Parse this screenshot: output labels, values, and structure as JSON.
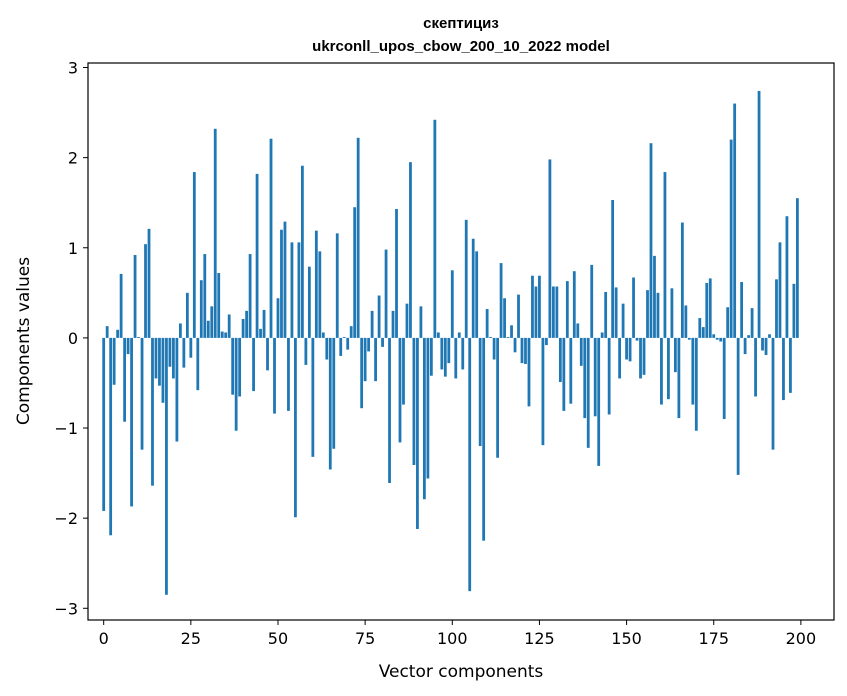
{
  "chart_data": {
    "type": "bar",
    "title": "скептициз",
    "subtitle": "ukrconll_upos_cbow_200_10_2022 model",
    "xlabel": "Vector components",
    "ylabel": "Components values",
    "xlim": [
      -4.5,
      209.5
    ],
    "ylim": [
      -3.13,
      3.05
    ],
    "xticks": [
      0,
      25,
      50,
      75,
      100,
      125,
      150,
      175,
      200
    ],
    "yticks": [
      -3,
      -2,
      -1,
      0,
      1,
      2,
      3
    ],
    "xtick_labels": [
      "0",
      "25",
      "50",
      "75",
      "100",
      "125",
      "150",
      "175",
      "200"
    ],
    "ytick_labels": [
      "−3",
      "−2",
      "−1",
      "0",
      "1",
      "2",
      "3"
    ],
    "grid": false,
    "bar_color": "#1f77b4",
    "x": [
      0,
      1,
      2,
      3,
      4,
      5,
      6,
      7,
      8,
      9,
      10,
      11,
      12,
      13,
      14,
      15,
      16,
      17,
      18,
      19,
      20,
      21,
      22,
      23,
      24,
      25,
      26,
      27,
      28,
      29,
      30,
      31,
      32,
      33,
      34,
      35,
      36,
      37,
      38,
      39,
      40,
      41,
      42,
      43,
      44,
      45,
      46,
      47,
      48,
      49,
      50,
      51,
      52,
      53,
      54,
      55,
      56,
      57,
      58,
      59,
      60,
      61,
      62,
      63,
      64,
      65,
      66,
      67,
      68,
      69,
      70,
      71,
      72,
      73,
      74,
      75,
      76,
      77,
      78,
      79,
      80,
      81,
      82,
      83,
      84,
      85,
      86,
      87,
      88,
      89,
      90,
      91,
      92,
      93,
      94,
      95,
      96,
      97,
      98,
      99,
      100,
      101,
      102,
      103,
      104,
      105,
      106,
      107,
      108,
      109,
      110,
      111,
      112,
      113,
      114,
      115,
      116,
      117,
      118,
      119,
      120,
      121,
      122,
      123,
      124,
      125,
      126,
      127,
      128,
      129,
      130,
      131,
      132,
      133,
      134,
      135,
      136,
      137,
      138,
      139,
      140,
      141,
      142,
      143,
      144,
      145,
      146,
      147,
      148,
      149,
      150,
      151,
      152,
      153,
      154,
      155,
      156,
      157,
      158,
      159,
      160,
      161,
      162,
      163,
      164,
      165,
      166,
      167,
      168,
      169,
      170,
      171,
      172,
      173,
      174,
      175,
      176,
      177,
      178,
      179,
      180,
      181,
      182,
      183,
      184,
      185,
      186,
      187,
      188,
      189,
      190,
      191,
      192,
      193,
      194,
      195,
      196,
      197,
      198,
      199
    ],
    "values": [
      -1.92,
      0.13,
      -2.19,
      -0.52,
      0.09,
      0.71,
      -0.93,
      -0.18,
      -1.87,
      0.92,
      0.01,
      -1.24,
      1.04,
      1.21,
      -1.64,
      -0.45,
      -0.53,
      -0.72,
      -2.85,
      -0.32,
      -0.45,
      -1.15,
      0.16,
      -0.33,
      0.5,
      -0.22,
      1.84,
      -0.58,
      0.64,
      0.93,
      0.19,
      0.35,
      2.32,
      0.72,
      0.07,
      0.06,
      0.26,
      -0.63,
      -1.03,
      -0.65,
      0.21,
      0.3,
      0.93,
      -0.59,
      1.82,
      0.1,
      0.31,
      -0.36,
      2.21,
      -0.84,
      0.44,
      1.2,
      1.29,
      -0.81,
      1.06,
      -1.99,
      1.06,
      1.91,
      -0.3,
      0.79,
      -1.32,
      1.19,
      0.96,
      0.06,
      -0.24,
      -1.46,
      -1.23,
      1.16,
      -0.2,
      0.01,
      -0.13,
      0.13,
      1.45,
      2.22,
      -0.78,
      -0.48,
      -0.15,
      0.3,
      -0.48,
      0.47,
      -0.1,
      0.98,
      -1.61,
      0.3,
      1.43,
      -1.16,
      -0.74,
      0.38,
      1.95,
      -1.41,
      -2.12,
      0.35,
      -1.79,
      -1.56,
      -0.42,
      2.42,
      0.06,
      -0.35,
      -0.43,
      -0.28,
      0.75,
      -0.45,
      0.06,
      -0.35,
      1.31,
      -2.81,
      1.1,
      0.96,
      -1.2,
      -2.25,
      0.32,
      0.01,
      -0.24,
      -1.33,
      0.83,
      0.44,
      0.01,
      0.14,
      -0.16,
      0.48,
      -0.28,
      -0.29,
      -0.76,
      0.69,
      0.57,
      0.69,
      -1.19,
      -0.08,
      1.98,
      0.57,
      0.57,
      -0.49,
      -0.81,
      0.63,
      -0.73,
      0.74,
      0.16,
      -0.31,
      -0.89,
      -1.22,
      0.81,
      -0.87,
      -1.42,
      0.06,
      0.51,
      -0.85,
      1.53,
      0.56,
      -0.45,
      0.38,
      -0.24,
      -0.26,
      0.67,
      -0.03,
      -0.45,
      -0.41,
      0.53,
      2.16,
      0.91,
      0.5,
      -0.74,
      1.84,
      -0.68,
      0.55,
      -0.38,
      -0.89,
      1.28,
      0.36,
      -0.02,
      -0.74,
      -1.03,
      0.22,
      0.12,
      0.61,
      0.66,
      0.04,
      -0.02,
      -0.04,
      -0.9,
      0.34,
      2.2,
      2.6,
      -1.52,
      0.62,
      -0.18,
      0.03,
      0.33,
      -0.65,
      2.74,
      -0.14,
      -0.19,
      0.04,
      -1.24,
      0.65,
      1.06,
      -0.69,
      1.35,
      -0.61,
      0.6,
      1.55
    ]
  }
}
